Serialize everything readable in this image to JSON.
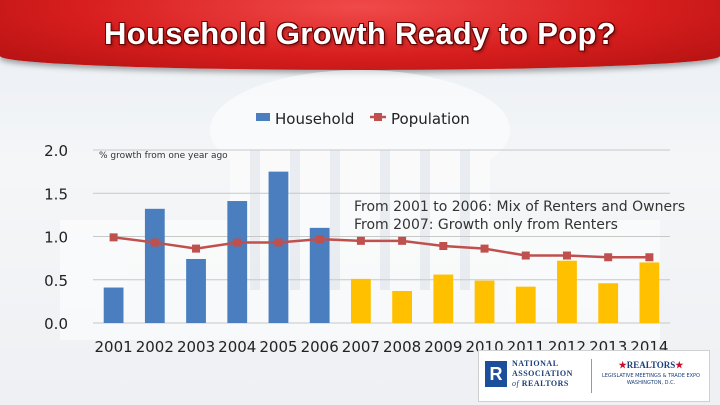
{
  "slide": {
    "title": "Household Growth Ready to Pop?"
  },
  "annotation": {
    "line1": "From 2001 to 2006: Mix of Renters and Owners",
    "line2": "From 2007: Growth only from Renters"
  },
  "logos": {
    "r_mark": "R",
    "nar_line1": "NATIONAL",
    "nar_line2": "ASSOCIATION",
    "nar_line3": "REALTORS",
    "nar_of": "of",
    "realtors_word": "REALTORS",
    "star": "★",
    "legis_line1": "LEGISLATIVE MEETINGS & TRADE EXPO",
    "legis_line2": "WASHINGTON, D.C."
  },
  "chart_data": {
    "type": "bar",
    "title": "",
    "subtitle": "% growth from one year ago",
    "xlabel": "",
    "ylabel": "",
    "ylim": [
      0,
      2.0
    ],
    "yticks": [
      0.0,
      0.5,
      1.0,
      1.5,
      2.0
    ],
    "ytick_labels": [
      "0.0",
      "0.5",
      "1.0",
      "1.5",
      "2.0"
    ],
    "categories": [
      "2001",
      "2002",
      "2003",
      "2004",
      "2005",
      "2006",
      "2007",
      "2008",
      "2009",
      "2010",
      "2011",
      "2012",
      "2013",
      "2014"
    ],
    "series": [
      {
        "name": "Household",
        "kind": "bar",
        "values": [
          0.41,
          1.32,
          0.74,
          1.41,
          1.75,
          1.1,
          0.51,
          0.37,
          0.56,
          0.49,
          0.42,
          0.72,
          0.46,
          0.7
        ],
        "colors": [
          "#4a7ebf",
          "#4a7ebf",
          "#4a7ebf",
          "#4a7ebf",
          "#4a7ebf",
          "#4a7ebf",
          "#ffc000",
          "#ffc000",
          "#ffc000",
          "#ffc000",
          "#ffc000",
          "#ffc000",
          "#ffc000",
          "#ffc000"
        ]
      },
      {
        "name": "Population",
        "kind": "line",
        "color": "#c0504d",
        "values": [
          0.99,
          0.93,
          0.86,
          0.93,
          0.93,
          0.97,
          0.95,
          0.95,
          0.89,
          0.86,
          0.78,
          0.78,
          0.76,
          0.76
        ]
      }
    ],
    "legend": [
      "Household",
      "Population"
    ],
    "legend_position": "top-center",
    "grid": true
  }
}
